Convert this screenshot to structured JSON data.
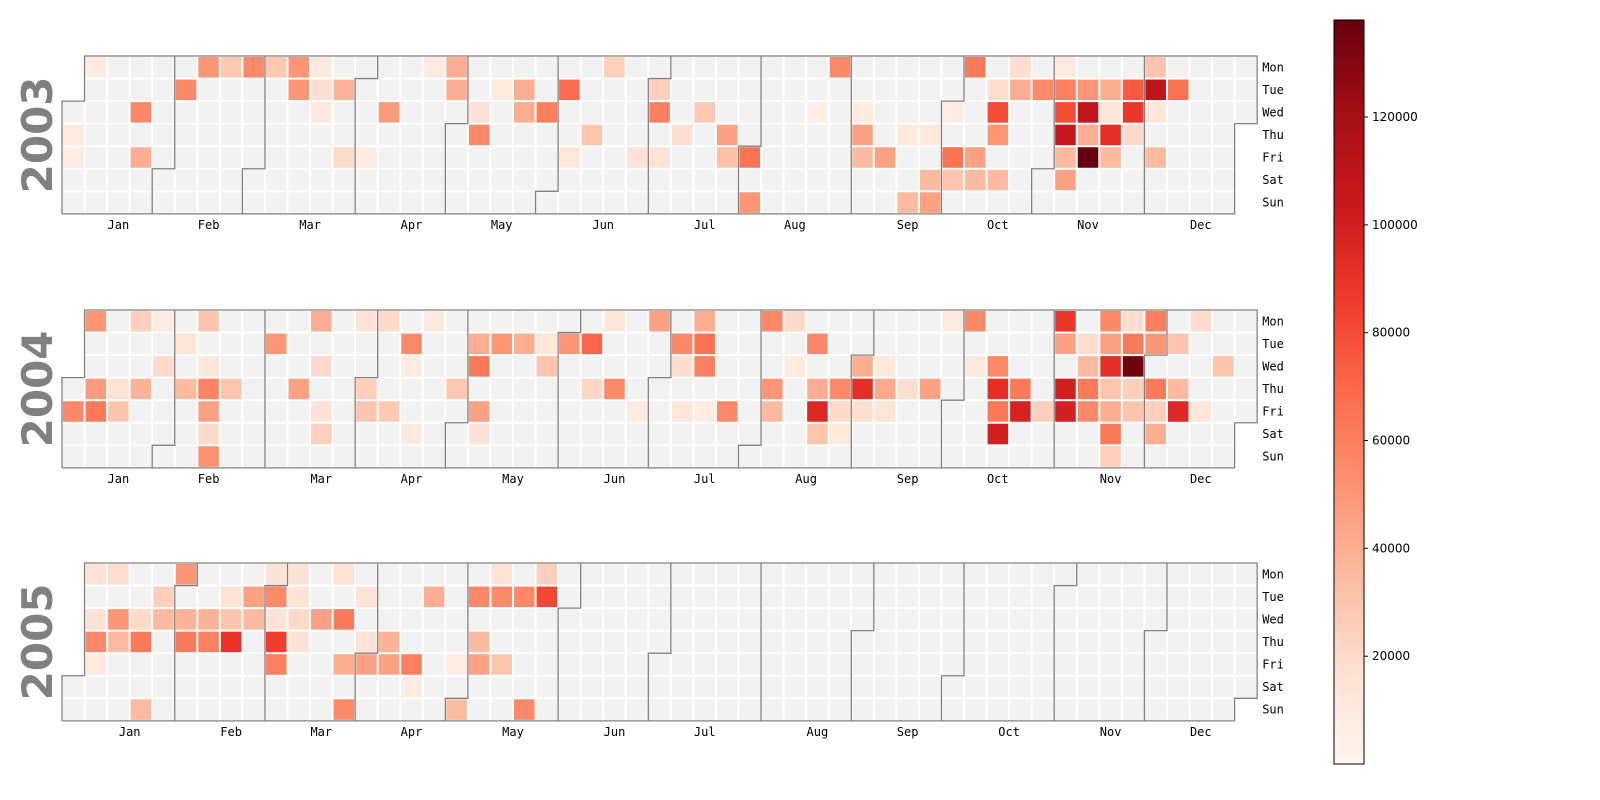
{
  "chart_data": {
    "type": "heatmap",
    "subtype": "calendar",
    "title": "",
    "colormap": "Reds",
    "empty_cell_color": "#f2f2f2",
    "border_color": "#808080",
    "weekday_labels": [
      "Mon",
      "Tue",
      "Wed",
      "Thu",
      "Fri",
      "Sat",
      "Sun"
    ],
    "month_labels": [
      "Jan",
      "Feb",
      "Mar",
      "Apr",
      "May",
      "Jun",
      "Jul",
      "Aug",
      "Sep",
      "Oct",
      "Nov",
      "Dec"
    ],
    "colorbar": {
      "min": 0,
      "max": 138000,
      "ticks": [
        20000,
        40000,
        60000,
        80000,
        100000,
        120000
      ],
      "tick_labels": [
        "20000",
        "40000",
        "60000",
        "80000",
        "100000",
        "120000"
      ]
    },
    "years": [
      {
        "year": 2003,
        "label": "2003",
        "data": [
          [
            "2003-01-06",
            8000
          ],
          [
            "2003-01-02",
            10000
          ],
          [
            "2003-01-03",
            8000
          ],
          [
            "2003-01-22",
            55000
          ],
          [
            "2003-01-24",
            40000
          ],
          [
            "2003-02-04",
            55000
          ],
          [
            "2003-02-10",
            50000
          ],
          [
            "2003-02-17",
            28000
          ],
          [
            "2003-02-24",
            55000
          ],
          [
            "2003-03-03",
            28000
          ],
          [
            "2003-03-10",
            50000
          ],
          [
            "2003-03-11",
            50000
          ],
          [
            "2003-03-18",
            18000
          ],
          [
            "2003-03-17",
            10000
          ],
          [
            "2003-03-19",
            10000
          ],
          [
            "2003-03-25",
            38000
          ],
          [
            "2003-03-28",
            20000
          ],
          [
            "2003-04-04",
            8000
          ],
          [
            "2003-04-09",
            48000
          ],
          [
            "2003-04-21",
            8000
          ],
          [
            "2003-04-28",
            40000
          ],
          [
            "2003-04-29",
            40000
          ],
          [
            "2003-05-07",
            15000
          ],
          [
            "2003-05-08",
            55000
          ],
          [
            "2003-05-13",
            10000
          ],
          [
            "2003-05-20",
            40000
          ],
          [
            "2003-05-21",
            40000
          ],
          [
            "2003-05-28",
            60000
          ],
          [
            "2003-06-03",
            68000
          ],
          [
            "2003-06-06",
            12000
          ],
          [
            "2003-06-12",
            30000
          ],
          [
            "2003-06-16",
            25000
          ],
          [
            "2003-06-27",
            15000
          ],
          [
            "2003-07-01",
            25000
          ],
          [
            "2003-07-02",
            60000
          ],
          [
            "2003-07-04",
            15000
          ],
          [
            "2003-07-10",
            18000
          ],
          [
            "2003-07-16",
            28000
          ],
          [
            "2003-07-24",
            45000
          ],
          [
            "2003-07-25",
            32000
          ],
          [
            "2003-08-01",
            65000
          ],
          [
            "2003-08-03",
            50000
          ],
          [
            "2003-08-25",
            55000
          ],
          [
            "2003-08-20",
            5000
          ],
          [
            "2003-09-03",
            8000
          ],
          [
            "2003-09-04",
            45000
          ],
          [
            "2003-09-05",
            35000
          ],
          [
            "2003-09-12",
            45000
          ],
          [
            "2003-09-18",
            10000
          ],
          [
            "2003-09-21",
            35000
          ],
          [
            "2003-09-25",
            10000
          ],
          [
            "2003-09-27",
            35000
          ],
          [
            "2003-09-28",
            45000
          ],
          [
            "2003-10-03",
            65000
          ],
          [
            "2003-10-04",
            30000
          ],
          [
            "2003-10-06",
            62000
          ],
          [
            "2003-10-01",
            8000
          ],
          [
            "2003-10-10",
            45000
          ],
          [
            "2003-10-11",
            35000
          ],
          [
            "2003-10-14",
            18000
          ],
          [
            "2003-10-15",
            80000
          ],
          [
            "2003-10-16",
            50000
          ],
          [
            "2003-10-18",
            35000
          ],
          [
            "2003-10-20",
            18000
          ],
          [
            "2003-10-21",
            40000
          ],
          [
            "2003-10-28",
            55000
          ],
          [
            "2003-11-03",
            10000
          ],
          [
            "2003-11-04",
            60000
          ],
          [
            "2003-11-05",
            80000
          ],
          [
            "2003-11-06",
            105000
          ],
          [
            "2003-11-07",
            35000
          ],
          [
            "2003-11-08",
            45000
          ],
          [
            "2003-11-11",
            50000
          ],
          [
            "2003-11-12",
            108000
          ],
          [
            "2003-11-13",
            40000
          ],
          [
            "2003-11-14",
            138000
          ],
          [
            "2003-11-18",
            40000
          ],
          [
            "2003-11-19",
            12000
          ],
          [
            "2003-11-20",
            92000
          ],
          [
            "2003-11-21",
            35000
          ],
          [
            "2003-11-25",
            75000
          ],
          [
            "2003-11-26",
            88000
          ],
          [
            "2003-11-27",
            20000
          ],
          [
            "2003-12-01",
            30000
          ],
          [
            "2003-12-02",
            110000
          ],
          [
            "2003-12-03",
            12000
          ],
          [
            "2003-12-05",
            35000
          ],
          [
            "2003-12-09",
            65000
          ]
        ]
      },
      {
        "year": 2004,
        "label": "2004",
        "data": [
          [
            "2004-01-02",
            55000
          ],
          [
            "2004-01-05",
            50000
          ],
          [
            "2004-01-08",
            48000
          ],
          [
            "2004-01-09",
            62000
          ],
          [
            "2004-01-15",
            15000
          ],
          [
            "2004-01-16",
            30000
          ],
          [
            "2004-01-19",
            25000
          ],
          [
            "2004-01-22",
            38000
          ],
          [
            "2004-01-26",
            8000
          ],
          [
            "2004-01-28",
            20000
          ],
          [
            "2004-02-03",
            15000
          ],
          [
            "2004-02-05",
            35000
          ],
          [
            "2004-02-09",
            30000
          ],
          [
            "2004-02-11",
            12000
          ],
          [
            "2004-02-12",
            58000
          ],
          [
            "2004-02-13",
            45000
          ],
          [
            "2004-02-14",
            20000
          ],
          [
            "2004-02-15",
            52000
          ],
          [
            "2004-02-19",
            30000
          ],
          [
            "2004-03-02",
            50000
          ],
          [
            "2004-03-11",
            45000
          ],
          [
            "2004-03-17",
            20000
          ],
          [
            "2004-03-19",
            15000
          ],
          [
            "2004-03-15",
            40000
          ],
          [
            "2004-03-20",
            25000
          ],
          [
            "2004-03-29",
            15000
          ],
          [
            "2004-04-01",
            25000
          ],
          [
            "2004-04-02",
            30000
          ],
          [
            "2004-04-05",
            20000
          ],
          [
            "2004-04-09",
            28000
          ],
          [
            "2004-04-13",
            55000
          ],
          [
            "2004-04-14",
            8000
          ],
          [
            "2004-04-17",
            10000
          ],
          [
            "2004-04-19",
            10000
          ],
          [
            "2004-04-29",
            28000
          ],
          [
            "2004-05-04",
            40000
          ],
          [
            "2004-05-05",
            62000
          ],
          [
            "2004-05-07",
            45000
          ],
          [
            "2004-05-08",
            15000
          ],
          [
            "2004-05-11",
            50000
          ],
          [
            "2004-05-18",
            40000
          ],
          [
            "2004-05-25",
            12000
          ],
          [
            "2004-05-26",
            30000
          ],
          [
            "2004-06-01",
            50000
          ],
          [
            "2004-06-08",
            70000
          ],
          [
            "2004-06-14",
            12000
          ],
          [
            "2004-06-10",
            22000
          ],
          [
            "2004-06-17",
            55000
          ],
          [
            "2004-06-25",
            8000
          ],
          [
            "2004-06-28",
            45000
          ],
          [
            "2004-07-06",
            55000
          ],
          [
            "2004-07-07",
            18000
          ],
          [
            "2004-07-09",
            12000
          ],
          [
            "2004-07-13",
            65000
          ],
          [
            "2004-07-14",
            60000
          ],
          [
            "2004-07-16",
            8000
          ],
          [
            "2004-07-12",
            40000
          ],
          [
            "2004-07-23",
            55000
          ],
          [
            "2004-08-02",
            55000
          ],
          [
            "2004-08-05",
            50000
          ],
          [
            "2004-08-06",
            35000
          ],
          [
            "2004-08-09",
            20000
          ],
          [
            "2004-08-17",
            55000
          ],
          [
            "2004-08-11",
            8000
          ],
          [
            "2004-08-19",
            40000
          ],
          [
            "2004-08-20",
            95000
          ],
          [
            "2004-08-21",
            30000
          ],
          [
            "2004-08-26",
            55000
          ],
          [
            "2004-08-27",
            20000
          ],
          [
            "2004-08-28",
            10000
          ],
          [
            "2004-09-01",
            40000
          ],
          [
            "2004-09-02",
            92000
          ],
          [
            "2004-09-03",
            18000
          ],
          [
            "2004-09-09",
            42000
          ],
          [
            "2004-09-10",
            15000
          ],
          [
            "2004-09-08",
            10000
          ],
          [
            "2004-09-16",
            18000
          ],
          [
            "2004-09-23",
            45000
          ],
          [
            "2004-09-27",
            10000
          ],
          [
            "2004-10-04",
            55000
          ],
          [
            "2004-10-06",
            10000
          ],
          [
            "2004-10-13",
            55000
          ],
          [
            "2004-10-14",
            92000
          ],
          [
            "2004-10-15",
            62000
          ],
          [
            "2004-10-16",
            100000
          ],
          [
            "2004-10-21",
            62000
          ],
          [
            "2004-10-22",
            98000
          ],
          [
            "2004-10-29",
            25000
          ],
          [
            "2004-11-01",
            88000
          ],
          [
            "2004-11-02",
            45000
          ],
          [
            "2004-11-04",
            100000
          ],
          [
            "2004-11-05",
            100000
          ],
          [
            "2004-11-09",
            18000
          ],
          [
            "2004-11-10",
            35000
          ],
          [
            "2004-11-11",
            62000
          ],
          [
            "2004-11-12",
            55000
          ],
          [
            "2004-11-15",
            55000
          ],
          [
            "2004-11-16",
            45000
          ],
          [
            "2004-11-17",
            92000
          ],
          [
            "2004-11-18",
            30000
          ],
          [
            "2004-11-19",
            40000
          ],
          [
            "2004-11-20",
            62000
          ],
          [
            "2004-11-21",
            25000
          ],
          [
            "2004-11-22",
            18000
          ],
          [
            "2004-11-23",
            62000
          ],
          [
            "2004-11-24",
            135000
          ],
          [
            "2004-11-25",
            25000
          ],
          [
            "2004-11-26",
            30000
          ],
          [
            "2004-11-29",
            60000
          ],
          [
            "2004-11-30",
            50000
          ],
          [
            "2004-12-02",
            62000
          ],
          [
            "2004-12-03",
            25000
          ],
          [
            "2004-12-04",
            40000
          ],
          [
            "2004-12-07",
            30000
          ],
          [
            "2004-12-09",
            35000
          ],
          [
            "2004-12-10",
            95000
          ],
          [
            "2004-12-13",
            18000
          ],
          [
            "2004-12-17",
            12000
          ],
          [
            "2004-12-22",
            30000
          ]
        ]
      },
      {
        "year": 2005,
        "label": "2005",
        "data": [
          [
            "2005-01-03",
            15000
          ],
          [
            "2005-01-05",
            15000
          ],
          [
            "2005-01-06",
            55000
          ],
          [
            "2005-01-07",
            10000
          ],
          [
            "2005-01-10",
            18000
          ],
          [
            "2005-01-12",
            50000
          ],
          [
            "2005-01-13",
            35000
          ],
          [
            "2005-01-19",
            20000
          ],
          [
            "2005-01-20",
            62000
          ],
          [
            "2005-01-23",
            35000
          ],
          [
            "2005-01-25",
            25000
          ],
          [
            "2005-01-26",
            35000
          ],
          [
            "2005-01-31",
            50000
          ],
          [
            "2005-02-02",
            38000
          ],
          [
            "2005-02-03",
            62000
          ],
          [
            "2005-02-09",
            38000
          ],
          [
            "2005-02-10",
            60000
          ],
          [
            "2005-02-15",
            15000
          ],
          [
            "2005-02-16",
            30000
          ],
          [
            "2005-02-17",
            90000
          ],
          [
            "2005-02-22",
            45000
          ],
          [
            "2005-02-23",
            35000
          ],
          [
            "2005-02-28",
            15000
          ],
          [
            "2005-03-01",
            55000
          ],
          [
            "2005-03-02",
            15000
          ],
          [
            "2005-03-03",
            85000
          ],
          [
            "2005-03-04",
            60000
          ],
          [
            "2005-03-07",
            15000
          ],
          [
            "2005-03-08",
            15000
          ],
          [
            "2005-03-10",
            15000
          ],
          [
            "2005-03-09",
            20000
          ],
          [
            "2005-03-16",
            45000
          ],
          [
            "2005-03-21",
            15000
          ],
          [
            "2005-03-23",
            62000
          ],
          [
            "2005-03-25",
            40000
          ],
          [
            "2005-03-27",
            55000
          ],
          [
            "2005-03-29",
            15000
          ],
          [
            "2005-03-31",
            15000
          ],
          [
            "2005-04-01",
            45000
          ],
          [
            "2005-04-07",
            38000
          ],
          [
            "2005-04-08",
            45000
          ],
          [
            "2005-04-15",
            60000
          ],
          [
            "2005-04-16",
            8000
          ],
          [
            "2005-04-19",
            40000
          ],
          [
            "2005-04-29",
            8000
          ],
          [
            "2005-05-01",
            35000
          ],
          [
            "2005-05-03",
            55000
          ],
          [
            "2005-05-05",
            35000
          ],
          [
            "2005-05-06",
            45000
          ],
          [
            "2005-05-09",
            15000
          ],
          [
            "2005-05-10",
            55000
          ],
          [
            "2005-05-13",
            30000
          ],
          [
            "2005-05-17",
            55000
          ],
          [
            "2005-05-22",
            55000
          ],
          [
            "2005-05-23",
            25000
          ],
          [
            "2005-05-24",
            82000
          ]
        ]
      }
    ]
  }
}
